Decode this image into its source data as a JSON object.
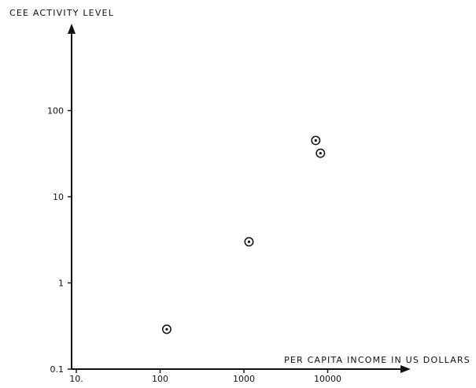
{
  "chart_data": {
    "type": "scatter",
    "title": "",
    "xlabel": "PER CAPITA INCOME IN US DOLLARS",
    "ylabel": "CEE ACTIVITY LEVEL",
    "xscale": "log",
    "yscale": "log",
    "xlim": [
      10,
      80000
    ],
    "ylim": [
      0.1,
      1100
    ],
    "grid": false,
    "legend": "none",
    "x_ticks": [
      {
        "value": 10,
        "label": "10."
      },
      {
        "value": 100,
        "label": "100"
      },
      {
        "value": 1000,
        "label": "1000"
      },
      {
        "value": 10000,
        "label": "10000"
      }
    ],
    "y_ticks": [
      {
        "value": 0.1,
        "label": "0.1"
      },
      {
        "value": 1,
        "label": "1"
      },
      {
        "value": 10,
        "label": "10"
      },
      {
        "value": 100,
        "label": "100"
      }
    ],
    "series": [
      {
        "points": [
          {
            "x": 120,
            "y": 0.29
          },
          {
            "x": 1150,
            "y": 3.0
          },
          {
            "x": 7200,
            "y": 45
          },
          {
            "x": 8200,
            "y": 32
          }
        ]
      }
    ]
  }
}
